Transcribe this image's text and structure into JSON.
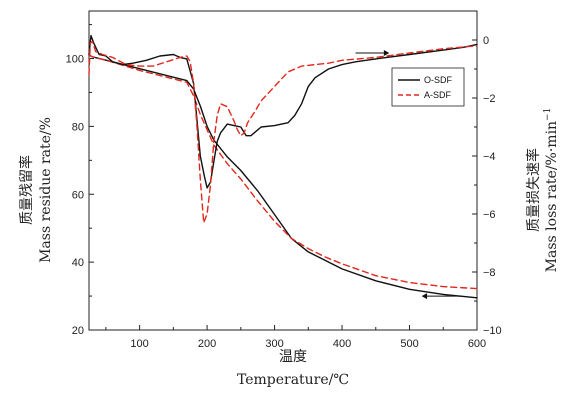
{
  "chart_data": {
    "type": "line",
    "xlabel_cn": "温度",
    "xlabel_en": "Temperature/℃",
    "ylabel_left_cn": "质量残留率",
    "ylabel_left_en": "Mass  residue  rate/%",
    "ylabel_right_cn": "质量损失速率",
    "ylabel_right_en": "Mass  loss  rate/%·min",
    "ylabel_right_sup": "−1",
    "xlim": [
      25,
      600
    ],
    "ylim_left": [
      20,
      114
    ],
    "ylim_right": [
      -10,
      1
    ],
    "x_ticks": [
      "100",
      "200",
      "300",
      "400",
      "500",
      "600"
    ],
    "y_left_ticks": [
      "20",
      "40",
      "60",
      "80",
      "100"
    ],
    "y_right_ticks": [
      "0",
      "−2",
      "−4",
      "−6",
      "−8",
      "−10"
    ],
    "legend": {
      "position": "top-right",
      "entries": [
        "O-SDF",
        "A-SDF"
      ]
    },
    "colors": {
      "O-SDF": "#111111",
      "A-SDF": "#e0281e"
    },
    "series": [
      {
        "name": "O-SDF",
        "kind": "residue",
        "axis": "left",
        "style": "solid",
        "x": [
          25,
          30,
          50,
          100,
          150,
          170,
          180,
          190,
          200,
          210,
          230,
          250,
          275,
          300,
          325,
          350,
          375,
          400,
          450,
          500,
          550,
          600
        ],
        "y": [
          101,
          100.5,
          99.5,
          97,
          94.5,
          93.5,
          91,
          86,
          80,
          76,
          71,
          67,
          61,
          54,
          47,
          43,
          40.5,
          38,
          34.5,
          32,
          30.5,
          29.5
        ]
      },
      {
        "name": "A-SDF",
        "kind": "residue",
        "axis": "left",
        "style": "dashed",
        "x": [
          25,
          30,
          50,
          100,
          150,
          170,
          180,
          190,
          200,
          210,
          230,
          250,
          275,
          300,
          325,
          350,
          375,
          400,
          450,
          500,
          550,
          600
        ],
        "y": [
          101,
          100.5,
          99.5,
          96.5,
          94,
          93,
          89,
          83.5,
          79,
          74.5,
          69,
          64.5,
          58,
          52,
          47,
          44,
          41.5,
          39.5,
          36,
          34,
          32.8,
          32.2
        ]
      },
      {
        "name": "O-SDF",
        "kind": "rate",
        "axis": "right",
        "style": "solid",
        "x": [
          25,
          28,
          32,
          40,
          50,
          60,
          75,
          90,
          110,
          130,
          150,
          160,
          170,
          180,
          190,
          196,
          200,
          205,
          210,
          215,
          220,
          230,
          240,
          250,
          258,
          265,
          280,
          300,
          320,
          330,
          340,
          350,
          360,
          380,
          400,
          420,
          450,
          500,
          550,
          580,
          600
        ],
        "y": [
          -0.5,
          0.15,
          -0.1,
          -0.5,
          -0.55,
          -0.75,
          -0.85,
          -0.8,
          -0.7,
          -0.55,
          -0.5,
          -0.6,
          -0.65,
          -1.5,
          -4.0,
          -4.7,
          -5.1,
          -4.9,
          -4.2,
          -3.5,
          -3.2,
          -2.9,
          -2.95,
          -3.0,
          -3.3,
          -3.3,
          -3.0,
          -2.95,
          -2.85,
          -2.6,
          -2.2,
          -1.6,
          -1.3,
          -1.0,
          -0.85,
          -0.75,
          -0.65,
          -0.5,
          -0.35,
          -0.25,
          -0.15
        ]
      },
      {
        "name": "A-SDF",
        "kind": "rate",
        "axis": "right",
        "style": "dashed",
        "x": [
          25,
          27,
          30,
          35,
          45,
          60,
          80,
          100,
          120,
          140,
          160,
          170,
          175,
          180,
          185,
          190,
          195,
          200,
          205,
          210,
          215,
          220,
          225,
          230,
          235,
          240,
          245,
          250,
          255,
          260,
          270,
          280,
          300,
          320,
          340,
          360,
          380,
          400,
          450,
          500,
          550,
          600
        ],
        "y": [
          -1.2,
          -0.1,
          -0.05,
          -0.4,
          -0.5,
          -0.6,
          -0.85,
          -0.9,
          -0.9,
          -0.75,
          -0.6,
          -0.55,
          -0.75,
          -1.5,
          -3.0,
          -4.8,
          -6.3,
          -6.0,
          -5.0,
          -3.5,
          -2.6,
          -2.2,
          -2.25,
          -2.3,
          -2.55,
          -2.8,
          -3.1,
          -3.3,
          -3.2,
          -2.85,
          -2.5,
          -2.1,
          -1.6,
          -1.1,
          -0.9,
          -0.85,
          -0.8,
          -0.7,
          -0.6,
          -0.45,
          -0.3,
          -0.2
        ]
      }
    ]
  }
}
